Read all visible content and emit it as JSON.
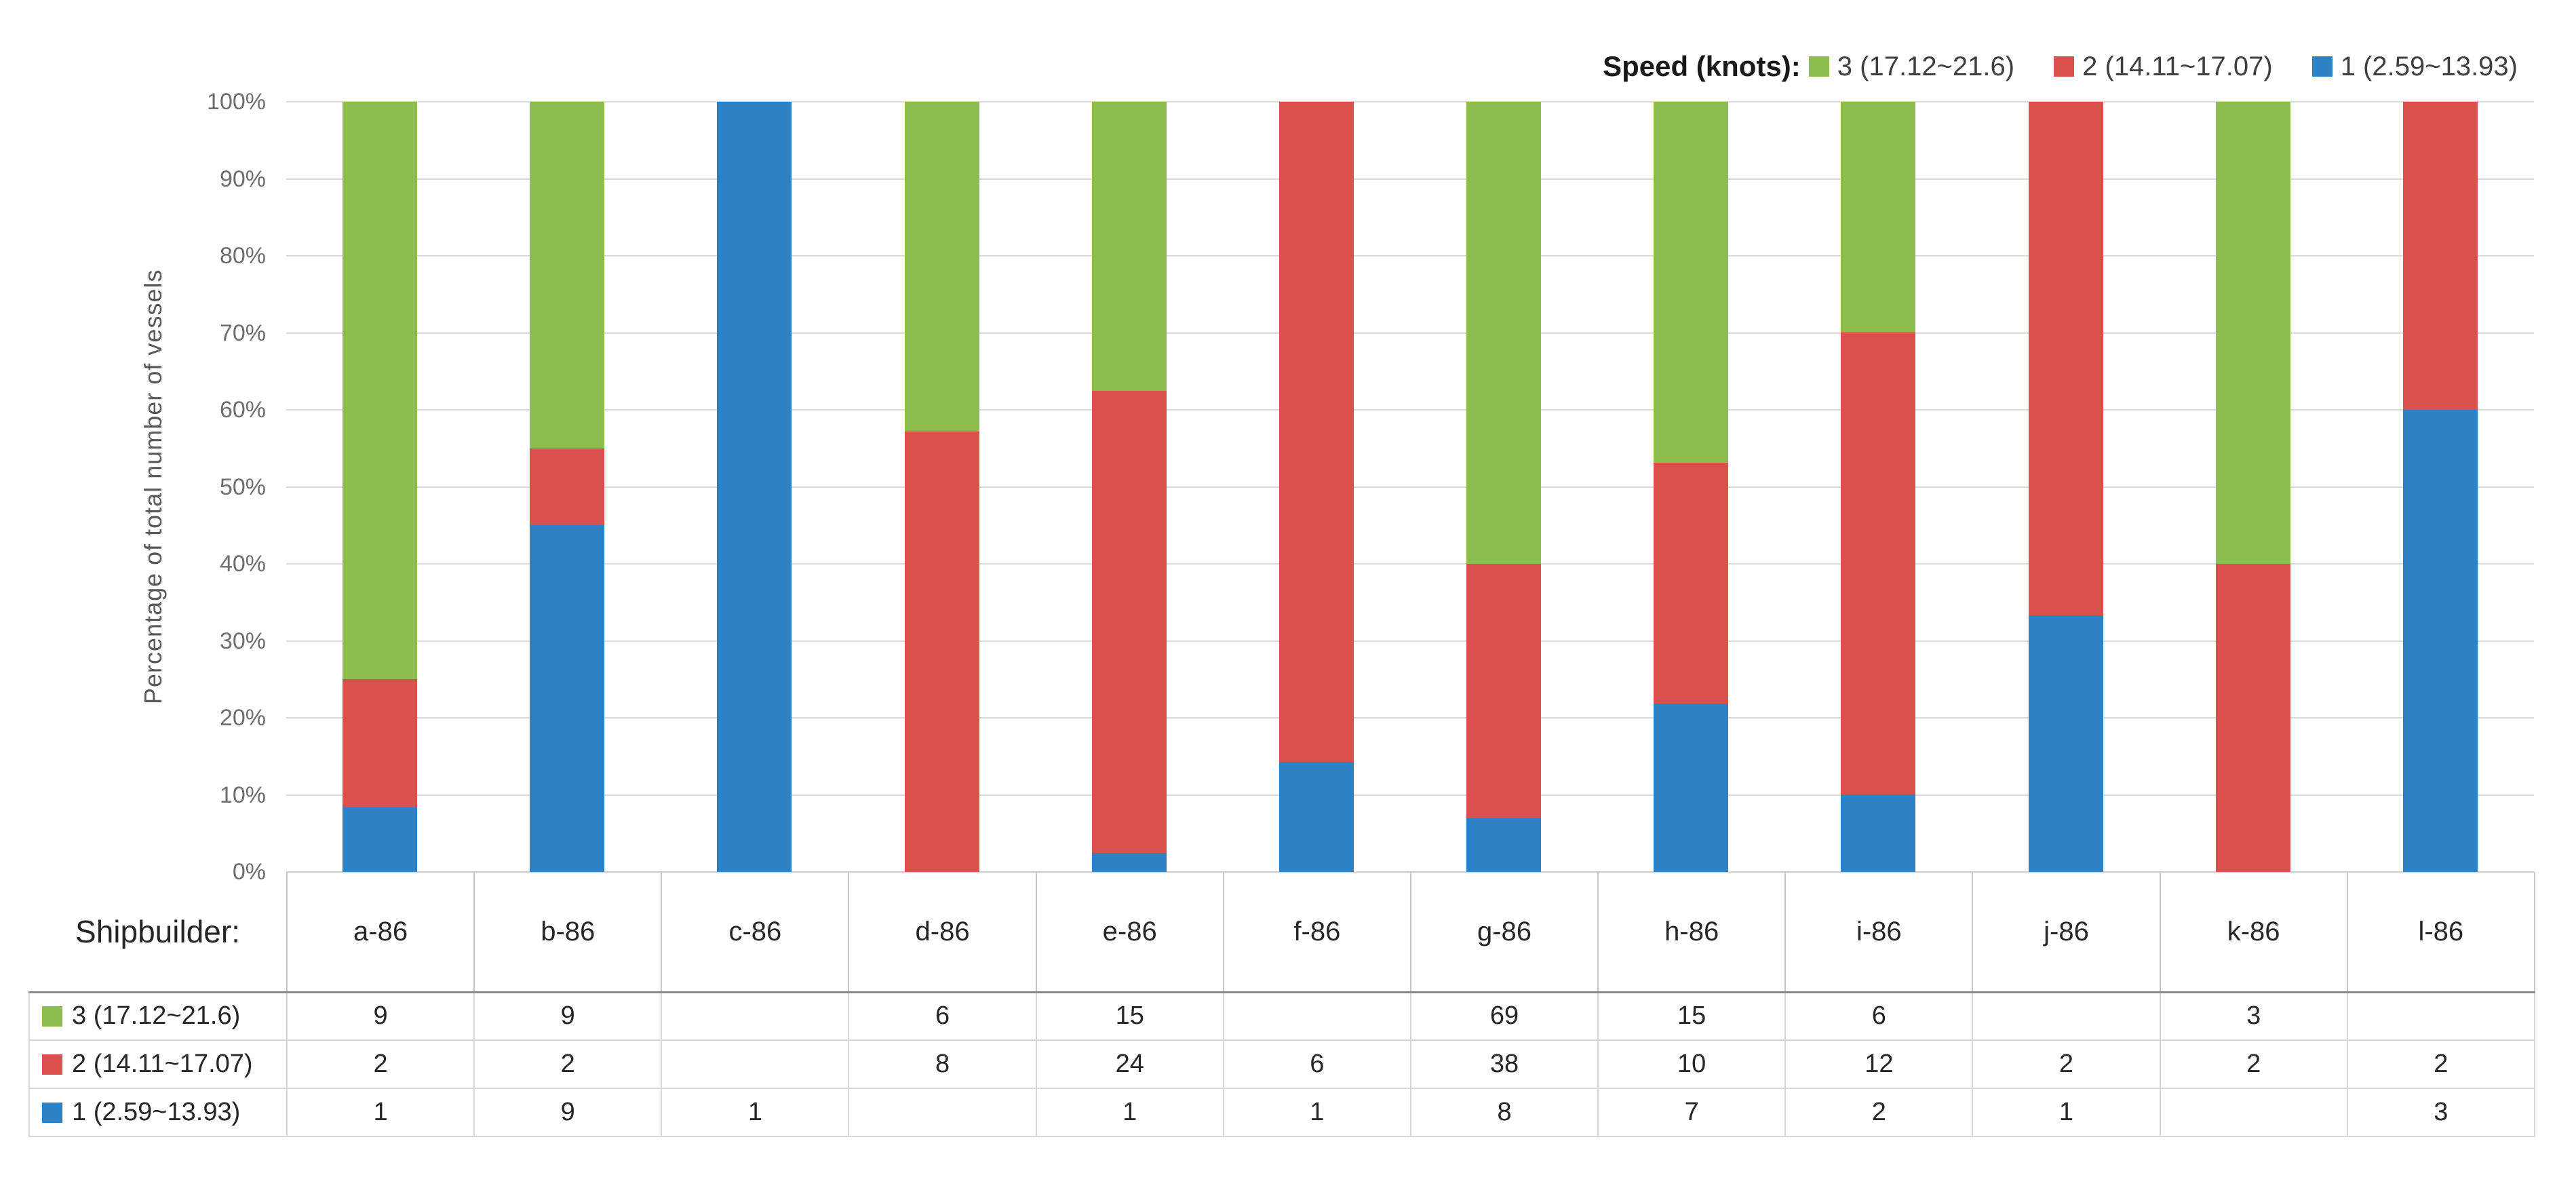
{
  "chart_data": {
    "type": "bar",
    "stacked": "percent",
    "title": "",
    "legend_title": "Speed (knots):",
    "legend_position": "top-right",
    "ylabel": "Percentage of total number of vessels",
    "xlabel": "Shipbuilder:",
    "ylim": [
      0,
      100
    ],
    "grid": true,
    "y_ticks": [
      "0%",
      "10%",
      "20%",
      "30%",
      "40%",
      "50%",
      "60%",
      "70%",
      "80%",
      "90%",
      "100%"
    ],
    "categories": [
      "a-86",
      "b-86",
      "c-86",
      "d-86",
      "e-86",
      "f-86",
      "g-86",
      "h-86",
      "i-86",
      "j-86",
      "k-86",
      "l-86"
    ],
    "series": [
      {
        "name": "3 (17.12~21.6)",
        "color": "#8CBD4E",
        "values": [
          9,
          9,
          null,
          6,
          15,
          null,
          69,
          15,
          6,
          null,
          3,
          null
        ]
      },
      {
        "name": "2 (14.11~17.07)",
        "color": "#D9504D",
        "values": [
          2,
          2,
          null,
          8,
          24,
          6,
          38,
          10,
          12,
          2,
          2,
          2
        ]
      },
      {
        "name": "1 (2.59~13.93)",
        "color": "#2C82C5",
        "values": [
          1,
          9,
          1,
          null,
          1,
          1,
          8,
          7,
          2,
          1,
          null,
          3
        ]
      }
    ],
    "stack_order_bottom_to_top": [
      "1 (2.59~13.93)",
      "2 (14.11~17.07)",
      "3 (17.12~21.6)"
    ]
  },
  "styles": {
    "gridline_color": "#D9D9D9",
    "tick_label_color": "#6E6E6E",
    "axis_title_color": "#595959",
    "table_text_color": "#262626"
  }
}
